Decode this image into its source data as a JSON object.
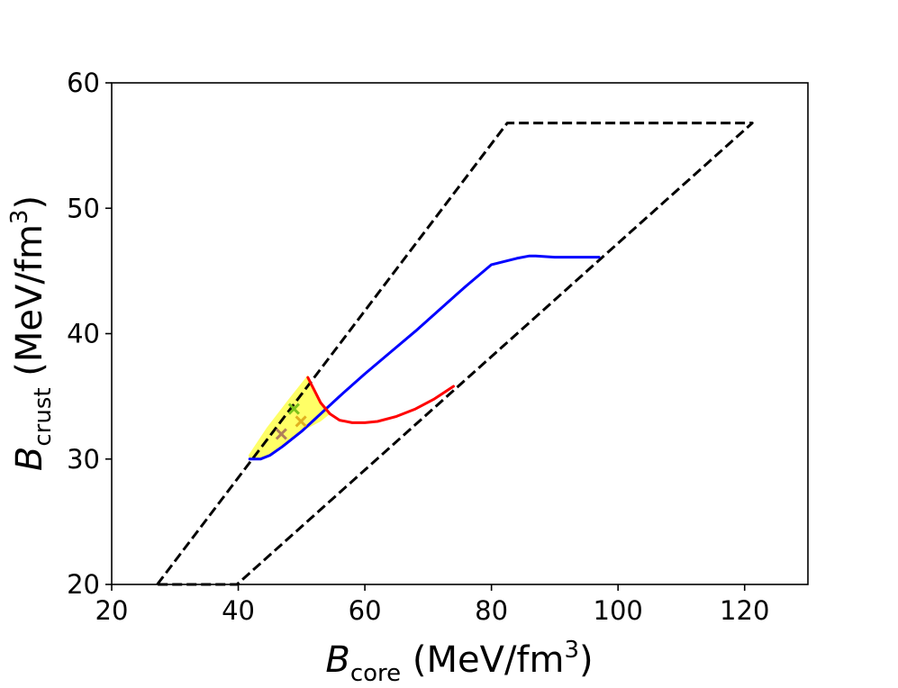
{
  "chart_data": {
    "type": "line",
    "title": "",
    "xlabel": {
      "symbol": "B",
      "subscript": "core",
      "unit_open": " (MeV/fm",
      "unit_sup": "3",
      "unit_close": ")"
    },
    "ylabel": {
      "symbol": "B",
      "subscript": "crust",
      "unit_open": " (MeV/fm",
      "unit_sup": "3",
      "unit_close": ")"
    },
    "xlim": [
      20,
      130
    ],
    "ylim": [
      20,
      60
    ],
    "xticks": [
      20,
      40,
      60,
      80,
      100,
      120
    ],
    "yticks": [
      20,
      30,
      40,
      50,
      60
    ],
    "grid": false,
    "colors": {
      "boundary": "#000000",
      "blue": "#0000ff",
      "red": "#ff0000",
      "fill": "#ffff66",
      "marker_green": "#7fc31c",
      "marker_brown": "#b07f5a",
      "marker_gold": "#e0b020"
    },
    "series": [
      {
        "name": "allowed-region-boundary",
        "style": "dashed",
        "color": "#000000",
        "x": [
          27.2,
          82.5,
          121.2,
          39.8,
          27.2
        ],
        "y": [
          20.0,
          56.8,
          56.8,
          20.0,
          20.0
        ]
      },
      {
        "name": "blue-curve",
        "style": "solid",
        "color": "#0000ff",
        "x": [
          41.8,
          43.5,
          45,
          47,
          50,
          53,
          56,
          60,
          64,
          68,
          72,
          76,
          80,
          84,
          86,
          87,
          90,
          97
        ],
        "y": [
          30.0,
          30.0,
          30.3,
          31.0,
          32.2,
          33.6,
          35.0,
          36.8,
          38.5,
          40.2,
          42.0,
          43.8,
          45.5,
          46.0,
          46.2,
          46.2,
          46.1,
          46.1
        ]
      },
      {
        "name": "red-curve",
        "style": "solid",
        "color": "#ff0000",
        "x": [
          51.0,
          52.0,
          53.0,
          54.5,
          56.0,
          58.0,
          60.0,
          62.0,
          65.0,
          68.0,
          71.0,
          74.0
        ],
        "y": [
          36.5,
          35.5,
          34.5,
          33.6,
          33.1,
          32.9,
          32.9,
          33.0,
          33.4,
          34.0,
          34.8,
          35.8
        ]
      }
    ],
    "region": {
      "name": "yellow-region",
      "color": "#ffff66",
      "x": [
        41.6,
        44.5,
        48.0,
        51.0,
        52.0,
        53.0,
        54.5,
        53.0,
        50.0,
        47.0,
        45.0,
        43.5,
        41.8
      ],
      "y": [
        30.3,
        32.5,
        34.8,
        36.7,
        35.5,
        34.5,
        33.6,
        33.0,
        32.2,
        31.0,
        30.3,
        30.0,
        30.0
      ]
    },
    "markers": [
      {
        "name": "green-x-marker",
        "x": 48.8,
        "y": 34.0,
        "color": "#7fc31c"
      },
      {
        "name": "gold-x-marker",
        "x": 49.9,
        "y": 33.0,
        "color": "#e0b020"
      },
      {
        "name": "brown-x-marker",
        "x": 46.8,
        "y": 32.0,
        "color": "#b07f5a"
      }
    ]
  }
}
